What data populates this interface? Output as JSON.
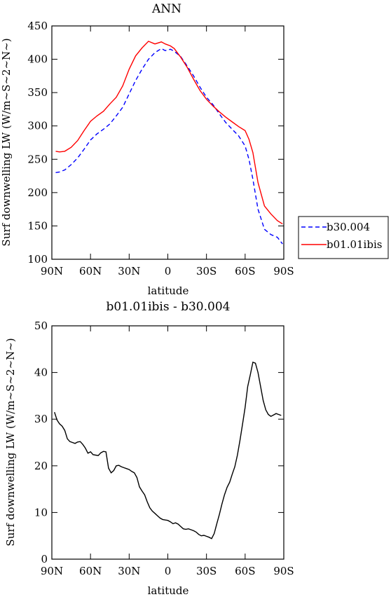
{
  "chart_data": [
    {
      "type": "line",
      "title": "ANN",
      "xlabel": "latitude",
      "ylabel": "Surf downwelling LW (W/m~S~2~N~)",
      "x_ticks": [
        "90N",
        "60N",
        "30N",
        "0",
        "30S",
        "60S",
        "90S"
      ],
      "xlim": [
        90,
        -90
      ],
      "ylim": [
        100,
        450
      ],
      "y_ticks": [
        100,
        150,
        200,
        250,
        300,
        350,
        400,
        450
      ],
      "legend_position": "right",
      "x": [
        87,
        84,
        80,
        75,
        70,
        65,
        60,
        55,
        50,
        45,
        40,
        35,
        30,
        25,
        20,
        15,
        10,
        5,
        2,
        -2,
        -5,
        -10,
        -15,
        -20,
        -25,
        -30,
        -35,
        -40,
        -45,
        -50,
        -55,
        -60,
        -63,
        -66,
        -70,
        -75,
        -80,
        -85,
        -89
      ],
      "series": [
        {
          "name": "b30.004",
          "color": "#0000ff",
          "dash": "dashed",
          "values": [
            230,
            231,
            234,
            242,
            252,
            265,
            279,
            288,
            295,
            303,
            315,
            328,
            348,
            368,
            385,
            400,
            410,
            416,
            413,
            415,
            412,
            404,
            390,
            375,
            358,
            343,
            332,
            318,
            305,
            295,
            285,
            270,
            250,
            220,
            175,
            145,
            137,
            133,
            123
          ]
        },
        {
          "name": "b01.01ibis",
          "color": "#ff0000",
          "dash": "solid",
          "values": [
            262,
            261,
            262,
            268,
            278,
            293,
            307,
            315,
            322,
            333,
            343,
            360,
            385,
            405,
            417,
            427,
            423,
            426,
            423,
            420,
            416,
            403,
            388,
            370,
            353,
            340,
            330,
            321,
            313,
            306,
            299,
            293,
            280,
            260,
            215,
            180,
            168,
            158,
            153
          ]
        }
      ]
    },
    {
      "type": "line",
      "title": "b01.01ibis - b30.004",
      "xlabel": "latitude",
      "ylabel": "Surf downwelling LW (W/m~S~2~N~)",
      "x_ticks": [
        "90N",
        "60N",
        "30N",
        "0",
        "30S",
        "60S",
        "90S"
      ],
      "xlim": [
        90,
        -90
      ],
      "ylim": [
        0,
        50
      ],
      "y_ticks": [
        0,
        10,
        20,
        30,
        40,
        50
      ],
      "x": [
        88,
        86,
        84,
        82,
        80,
        78,
        76,
        74,
        72,
        70,
        68,
        66,
        64,
        62,
        60,
        58,
        56,
        54,
        52,
        50,
        48,
        46,
        44,
        42,
        40,
        38,
        36,
        34,
        32,
        30,
        28,
        26,
        24,
        22,
        20,
        18,
        16,
        14,
        12,
        10,
        8,
        6,
        4,
        2,
        0,
        -2,
        -4,
        -6,
        -8,
        -10,
        -12,
        -14,
        -16,
        -18,
        -20,
        -22,
        -24,
        -26,
        -28,
        -30,
        -32,
        -34,
        -36,
        -38,
        -40,
        -42,
        -44,
        -46,
        -48,
        -50,
        -52,
        -54,
        -56,
        -58,
        -60,
        -62,
        -64,
        -66,
        -68,
        -70,
        -72,
        -74,
        -76,
        -78,
        -80,
        -82,
        -84,
        -86,
        -88
      ],
      "series": [
        {
          "name": "",
          "color": "#000000",
          "dash": "solid",
          "values": [
            31.5,
            29.8,
            29.0,
            28.5,
            27.6,
            25.8,
            25.2,
            25.0,
            24.8,
            25.1,
            25.2,
            24.6,
            23.8,
            22.7,
            23.0,
            22.4,
            22.3,
            22.2,
            22.8,
            23.1,
            23.0,
            19.5,
            18.5,
            19.0,
            20.0,
            20.1,
            19.8,
            19.6,
            19.4,
            19.2,
            18.8,
            18.5,
            17.5,
            15.5,
            14.6,
            13.8,
            12.3,
            11.0,
            10.3,
            9.8,
            9.3,
            8.8,
            8.5,
            8.4,
            8.3,
            8.0,
            7.6,
            7.8,
            7.5,
            7.0,
            6.5,
            6.4,
            6.5,
            6.3,
            6.1,
            5.8,
            5.3,
            5.0,
            5.1,
            4.9,
            4.7,
            4.4,
            5.5,
            7.6,
            9.6,
            11.8,
            13.8,
            15.4,
            16.5,
            18.2,
            19.8,
            22.3,
            25.5,
            29.0,
            32.5,
            37.0,
            39.5,
            42.2,
            42.0,
            40.0,
            37.0,
            34.0,
            32.0,
            31.0,
            30.6,
            30.9,
            31.2,
            31.0,
            30.8
          ]
        }
      ]
    }
  ]
}
